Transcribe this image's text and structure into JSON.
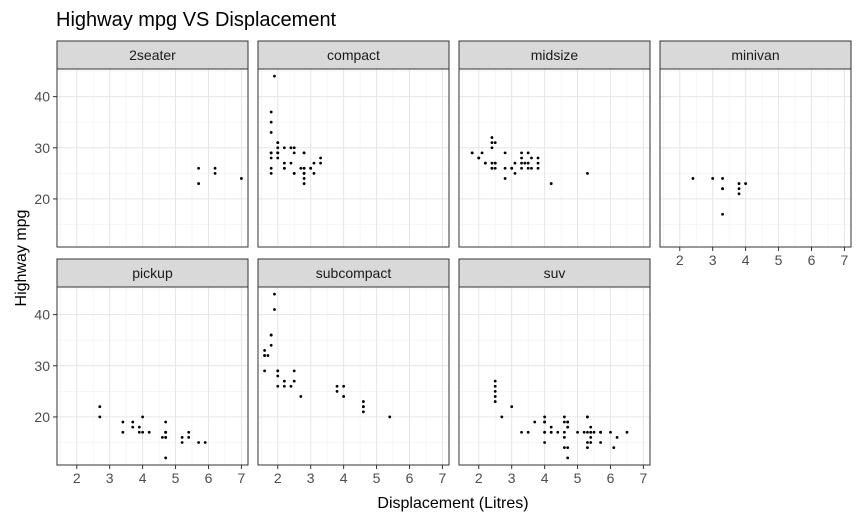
{
  "chart_data": {
    "type": "scatter",
    "title": "Highway mpg VS Displacement",
    "xlabel": "Displacement (Litres)",
    "ylabel": "Highway mpg",
    "xlim": [
      1.4,
      7.2
    ],
    "ylim": [
      10.6,
      45.4
    ],
    "x_ticks": [
      2,
      3,
      4,
      5,
      6,
      7
    ],
    "y_ticks": [
      20,
      30,
      40
    ],
    "grid": true,
    "facets": [
      {
        "label": "2seater",
        "points": [
          [
            5.7,
            26
          ],
          [
            5.7,
            23
          ],
          [
            6.2,
            26
          ],
          [
            6.2,
            25
          ],
          [
            7.0,
            24
          ]
        ]
      },
      {
        "label": "compact",
        "points": [
          [
            1.8,
            29
          ],
          [
            1.8,
            29
          ],
          [
            2.0,
            31
          ],
          [
            2.0,
            30
          ],
          [
            2.8,
            26
          ],
          [
            2.8,
            26
          ],
          [
            3.1,
            27
          ],
          [
            1.8,
            26
          ],
          [
            1.8,
            25
          ],
          [
            1.8,
            28
          ],
          [
            2.0,
            28
          ],
          [
            2.0,
            29
          ],
          [
            2.8,
            25
          ],
          [
            2.8,
            25
          ],
          [
            3.1,
            25
          ],
          [
            2.4,
            27
          ],
          [
            2.4,
            30
          ],
          [
            2.5,
            30
          ],
          [
            2.5,
            25
          ],
          [
            2.5,
            25
          ],
          [
            1.9,
            44
          ],
          [
            2.0,
            29
          ],
          [
            2.0,
            29
          ],
          [
            2.8,
            29
          ],
          [
            2.8,
            29
          ],
          [
            1.8,
            29
          ],
          [
            1.8,
            33
          ],
          [
            1.8,
            35
          ],
          [
            1.8,
            37
          ],
          [
            2.2,
            26
          ],
          [
            2.2,
            27
          ],
          [
            2.2,
            30
          ],
          [
            2.2,
            26
          ],
          [
            3.0,
            26
          ],
          [
            3.0,
            26
          ],
          [
            3.3,
            27
          ],
          [
            3.3,
            28
          ],
          [
            2.0,
            31
          ],
          [
            2.5,
            29
          ],
          [
            2.8,
            23
          ],
          [
            2.8,
            24
          ],
          [
            2.7,
            26
          ]
        ]
      },
      {
        "label": "midsize",
        "points": [
          [
            2.8,
            26
          ],
          [
            3.1,
            25
          ],
          [
            4.2,
            23
          ],
          [
            2.4,
            31
          ],
          [
            2.4,
            32
          ],
          [
            3.3,
            29
          ],
          [
            3.6,
            26
          ],
          [
            3.1,
            27
          ],
          [
            3.8,
            28
          ],
          [
            3.8,
            27
          ],
          [
            3.8,
            26
          ],
          [
            5.3,
            25
          ],
          [
            2.2,
            27
          ],
          [
            2.4,
            30
          ],
          [
            2.5,
            27
          ],
          [
            2.5,
            26
          ],
          [
            3.3,
            27
          ],
          [
            3.5,
            29
          ],
          [
            3.5,
            26
          ],
          [
            1.8,
            29
          ],
          [
            1.8,
            29
          ],
          [
            2.0,
            28
          ],
          [
            2.0,
            28
          ],
          [
            2.1,
            29
          ],
          [
            2.4,
            26
          ],
          [
            2.4,
            26
          ],
          [
            2.5,
            31
          ],
          [
            2.8,
            24
          ],
          [
            3.0,
            26
          ],
          [
            3.0,
            26
          ],
          [
            3.3,
            28
          ],
          [
            3.5,
            27
          ],
          [
            2.2,
            27
          ],
          [
            2.4,
            27
          ],
          [
            2.5,
            27
          ],
          [
            2.8,
            29
          ],
          [
            3.3,
            26
          ],
          [
            3.6,
            28
          ],
          [
            3.4,
            27
          ]
        ]
      },
      {
        "label": "minivan",
        "points": [
          [
            2.4,
            24
          ],
          [
            3.0,
            24
          ],
          [
            3.3,
            22
          ],
          [
            3.3,
            22
          ],
          [
            3.3,
            24
          ],
          [
            3.3,
            17
          ],
          [
            3.8,
            22
          ],
          [
            3.8,
            21
          ],
          [
            3.8,
            23
          ],
          [
            4.0,
            23
          ]
        ]
      },
      {
        "label": "pickup",
        "points": [
          [
            2.7,
            20
          ],
          [
            2.7,
            22
          ],
          [
            3.4,
            17
          ],
          [
            3.4,
            19
          ],
          [
            4.0,
            20
          ],
          [
            4.7,
            17
          ],
          [
            4.7,
            12
          ],
          [
            4.7,
            16
          ],
          [
            5.2,
            15
          ],
          [
            5.2,
            16
          ],
          [
            3.9,
            17
          ],
          [
            3.9,
            18
          ],
          [
            4.7,
            19
          ],
          [
            4.7,
            17
          ],
          [
            5.7,
            15
          ],
          [
            5.9,
            15
          ],
          [
            4.2,
            17
          ],
          [
            4.6,
            16
          ],
          [
            5.4,
            17
          ],
          [
            5.4,
            16
          ],
          [
            3.7,
            19
          ],
          [
            4.0,
            17
          ],
          [
            3.7,
            18
          ],
          [
            4.7,
            17
          ],
          [
            4.7,
            16
          ]
        ]
      },
      {
        "label": "subcompact",
        "points": [
          [
            3.8,
            26
          ],
          [
            3.8,
            25
          ],
          [
            4.0,
            26
          ],
          [
            4.0,
            24
          ],
          [
            4.6,
            21
          ],
          [
            4.6,
            22
          ],
          [
            4.6,
            23
          ],
          [
            4.6,
            22
          ],
          [
            5.4,
            20
          ],
          [
            1.6,
            33
          ],
          [
            1.6,
            32
          ],
          [
            1.6,
            32
          ],
          [
            1.6,
            29
          ],
          [
            1.7,
            32
          ],
          [
            1.8,
            34
          ],
          [
            1.8,
            36
          ],
          [
            1.8,
            36
          ],
          [
            2.0,
            29
          ],
          [
            2.4,
            26
          ],
          [
            2.5,
            27
          ],
          [
            2.5,
            29
          ],
          [
            2.0,
            26
          ],
          [
            2.0,
            28
          ],
          [
            2.2,
            27
          ],
          [
            2.2,
            26
          ],
          [
            2.7,
            24
          ],
          [
            1.9,
            44
          ],
          [
            1.9,
            41
          ],
          [
            2.0,
            29
          ]
        ]
      },
      {
        "label": "suv",
        "points": [
          [
            5.3,
            20
          ],
          [
            5.3,
            15
          ],
          [
            5.3,
            20
          ],
          [
            5.7,
            17
          ],
          [
            6.0,
            17
          ],
          [
            5.7,
            17
          ],
          [
            6.5,
            17
          ],
          [
            3.7,
            19
          ],
          [
            4.7,
            19
          ],
          [
            4.7,
            18
          ],
          [
            5.2,
            17
          ],
          [
            5.7,
            17
          ],
          [
            4.0,
            17
          ],
          [
            4.0,
            19
          ],
          [
            4.6,
            20
          ],
          [
            5.0,
            17
          ],
          [
            5.4,
            18
          ],
          [
            5.4,
            17
          ],
          [
            4.2,
            17
          ],
          [
            4.2,
            18
          ],
          [
            4.6,
            16
          ],
          [
            4.6,
            17
          ],
          [
            5.4,
            17
          ],
          [
            5.4,
            16
          ],
          [
            4.0,
            20
          ],
          [
            4.0,
            19
          ],
          [
            4.6,
            19
          ],
          [
            5.3,
            17
          ],
          [
            2.5,
            27
          ],
          [
            2.5,
            26
          ],
          [
            2.5,
            23
          ],
          [
            2.5,
            24
          ],
          [
            2.5,
            25
          ],
          [
            2.7,
            20
          ],
          [
            3.0,
            22
          ],
          [
            4.0,
            15
          ],
          [
            4.7,
            19
          ],
          [
            4.7,
            12
          ],
          [
            4.2,
            17
          ],
          [
            4.7,
            14
          ],
          [
            5.5,
            17
          ],
          [
            6.1,
            14
          ],
          [
            6.2,
            16
          ],
          [
            4.4,
            17
          ],
          [
            5.3,
            14
          ],
          [
            3.3,
            17
          ],
          [
            3.5,
            17
          ],
          [
            5.7,
            15
          ],
          [
            4.0,
            17
          ],
          [
            4.6,
            14
          ],
          [
            5.4,
            15
          ]
        ]
      }
    ]
  }
}
